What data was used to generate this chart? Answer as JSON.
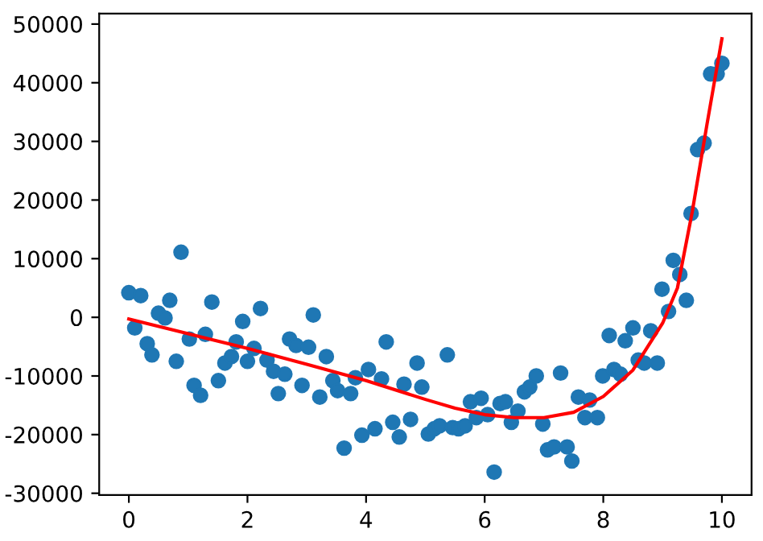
{
  "chart_data": {
    "type": "scatter",
    "xlim": [
      -0.5,
      10.5
    ],
    "ylim": [
      -30300,
      51800
    ],
    "xticks": [
      0,
      2,
      4,
      6,
      8,
      10
    ],
    "yticks": [
      -30000,
      -20000,
      -10000,
      0,
      10000,
      20000,
      30000,
      40000,
      50000
    ],
    "grid": false,
    "series": [
      {
        "marker": "circle",
        "color": "#1f77b4",
        "x": [
          0.0,
          0.1,
          0.2,
          0.31,
          0.39,
          0.5,
          0.61,
          0.69,
          0.8,
          0.88,
          1.02,
          1.1,
          1.21,
          1.29,
          1.4,
          1.51,
          1.62,
          1.73,
          1.81,
          1.92,
          2.0,
          2.11,
          2.22,
          2.33,
          2.44,
          2.52,
          2.63,
          2.71,
          2.82,
          2.92,
          3.03,
          3.11,
          3.22,
          3.33,
          3.44,
          3.52,
          3.63,
          3.74,
          3.82,
          3.93,
          4.04,
          4.15,
          4.26,
          4.34,
          4.45,
          4.56,
          4.64,
          4.75,
          4.86,
          4.94,
          5.05,
          5.15,
          5.24,
          5.37,
          5.46,
          5.56,
          5.67,
          5.76,
          5.86,
          5.94,
          6.05,
          6.16,
          6.26,
          6.35,
          6.45,
          6.56,
          6.67,
          6.76,
          6.87,
          6.98,
          7.06,
          7.17,
          7.28,
          7.39,
          7.47,
          7.58,
          7.69,
          7.77,
          7.9,
          7.99,
          8.1,
          8.18,
          8.29,
          8.37,
          8.5,
          8.59,
          8.69,
          8.8,
          8.91,
          8.99,
          9.1,
          9.18,
          9.29,
          9.4,
          9.48,
          9.59,
          9.7,
          9.81,
          9.92,
          10.0
        ],
        "values": [
          4200,
          -1800,
          3700,
          -4500,
          -6400,
          700,
          -100,
          2900,
          -7500,
          11100,
          -3700,
          -11600,
          -13300,
          -2900,
          2600,
          -10800,
          -7800,
          -6700,
          -4200,
          -700,
          -7500,
          -5300,
          1500,
          -7300,
          -9200,
          -13000,
          -9700,
          -3700,
          -4800,
          -11600,
          -5100,
          400,
          -13600,
          -6700,
          -10800,
          -12500,
          -22300,
          -13000,
          -10300,
          -20100,
          -8900,
          -19000,
          -10500,
          -4200,
          -17900,
          -20400,
          -11400,
          -17400,
          -7800,
          -11900,
          -19900,
          -19000,
          -18500,
          -6400,
          -18800,
          -19000,
          -18500,
          -14400,
          -17100,
          -13800,
          -16600,
          -26400,
          -14700,
          -14400,
          -17900,
          -16000,
          -12700,
          -11900,
          -10000,
          -18200,
          -22600,
          -22100,
          -9500,
          -22100,
          -24500,
          -13600,
          -17100,
          -14100,
          -17100,
          -10000,
          -3100,
          -8900,
          -9700,
          -4000,
          -1800,
          -7300,
          -7800,
          -2300,
          -7800,
          4800,
          1000,
          9700,
          7300,
          2900,
          17700,
          28600,
          29700,
          41500,
          41500,
          43300
        ]
      },
      {
        "type": "line",
        "color": "#ff0000",
        "marker": "none",
        "line_style": "solid",
        "x": [
          0,
          1,
          2,
          3,
          4,
          5,
          5.5,
          6,
          6.5,
          7,
          7.5,
          8,
          8.5,
          9,
          9.25,
          9.5,
          9.75,
          10
        ],
        "values": [
          -300,
          -2800,
          -5300,
          -8000,
          -10800,
          -14000,
          -15500,
          -16600,
          -17100,
          -17100,
          -16200,
          -13500,
          -9000,
          -1000,
          5000,
          18000,
          33000,
          47500
        ]
      }
    ]
  }
}
